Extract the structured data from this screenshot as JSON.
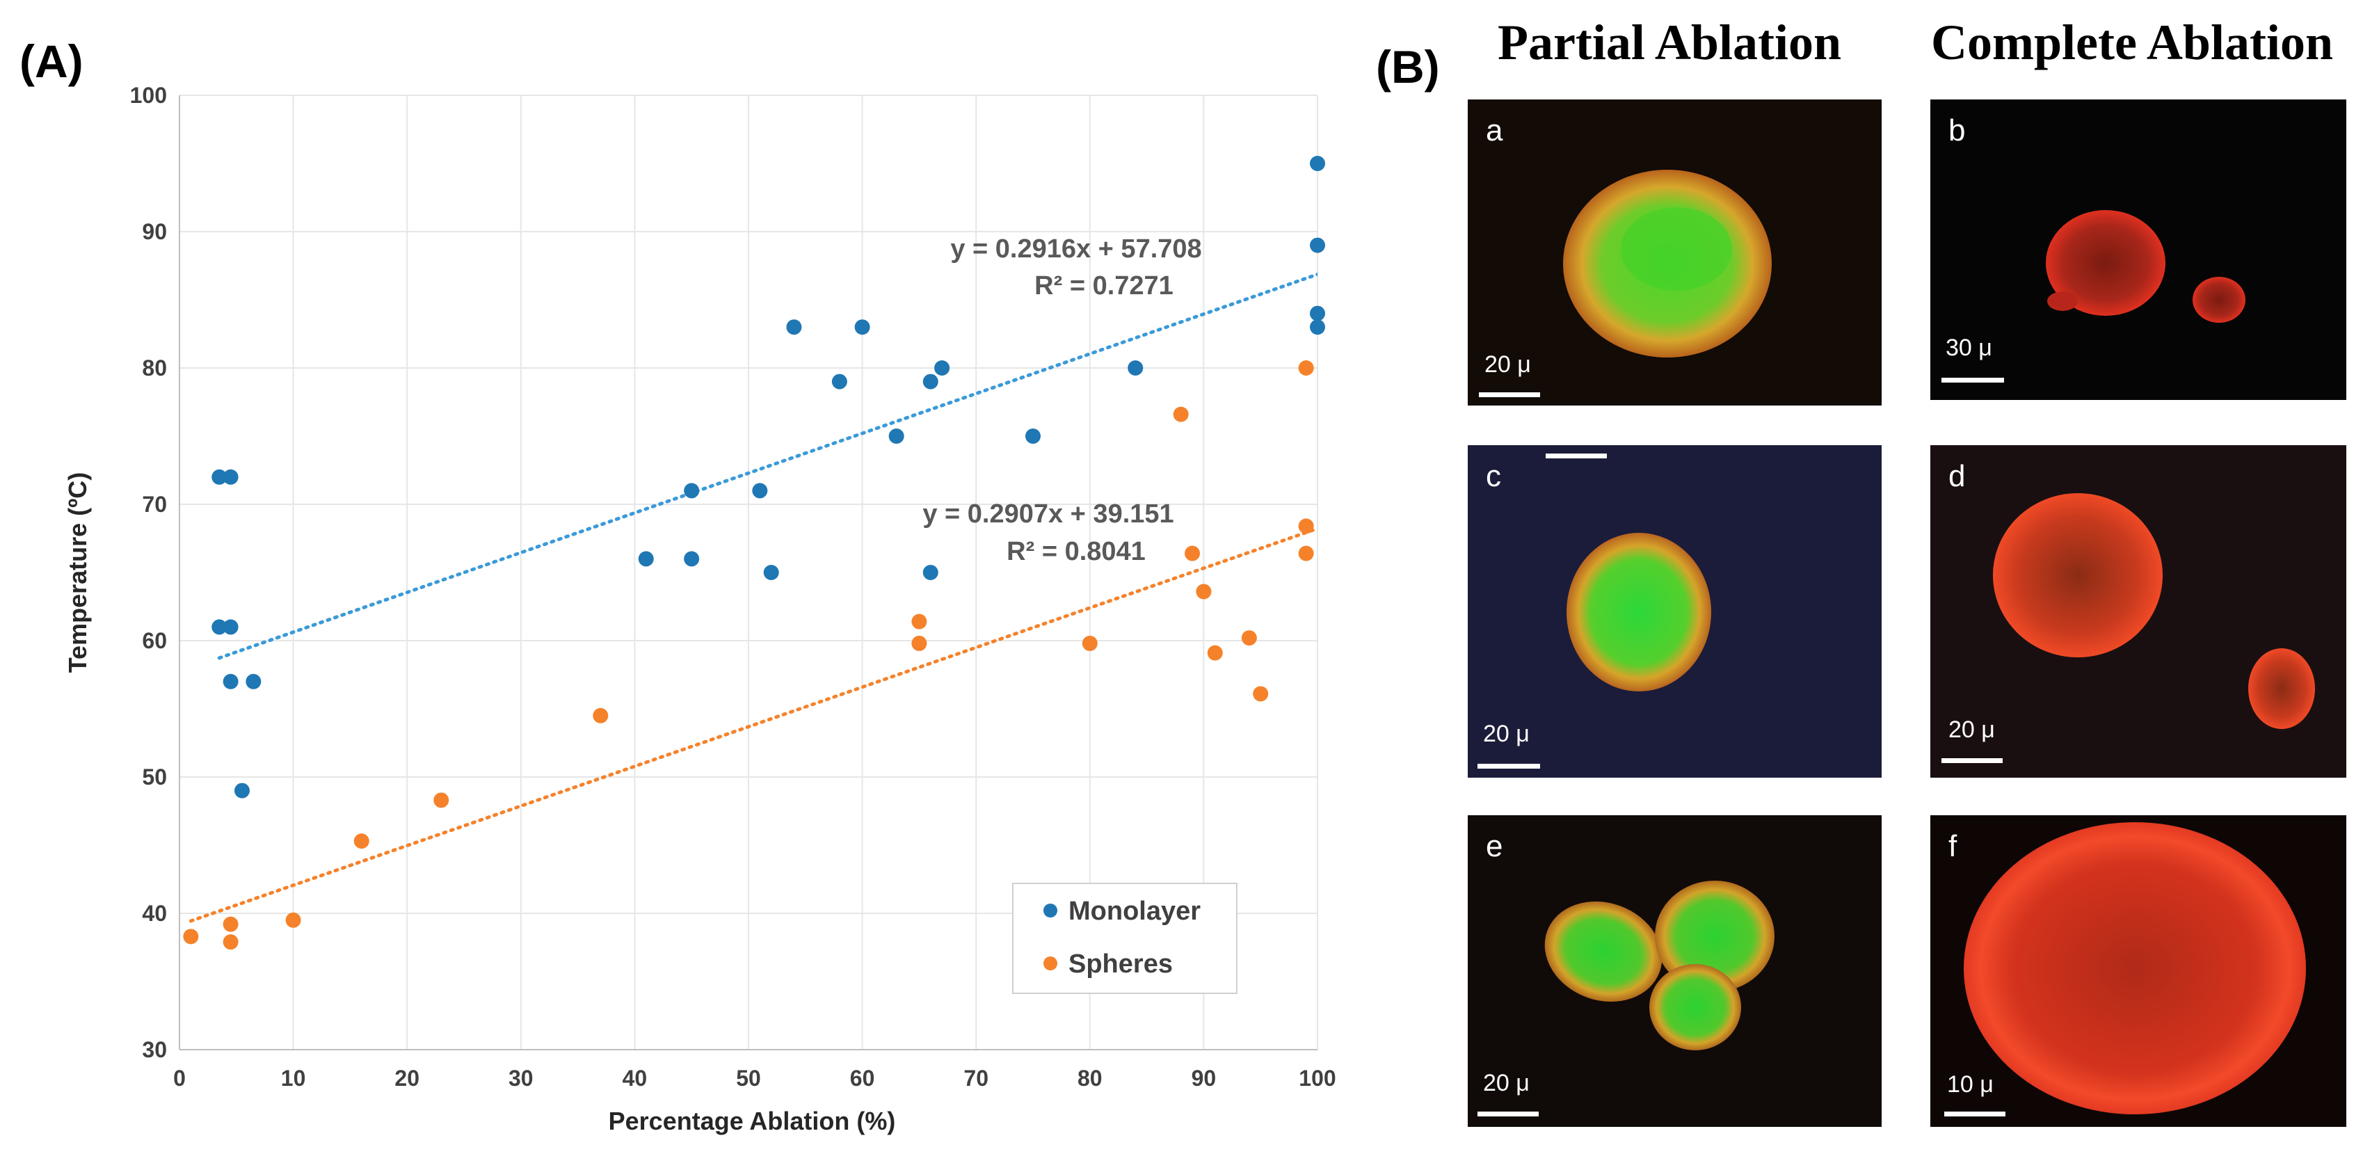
{
  "figure": {
    "panel_a_label": "(A)",
    "panel_b_label": "(B)"
  },
  "chart_data": {
    "type": "scatter",
    "xlabel": "Percentage Ablation (%)",
    "ylabel": "Temperature (ºC)",
    "xlim": [
      0,
      100
    ],
    "ylim": [
      30,
      100
    ],
    "xticks": [
      0,
      10,
      20,
      30,
      40,
      50,
      60,
      70,
      80,
      90,
      100
    ],
    "yticks": [
      30,
      40,
      50,
      60,
      70,
      80,
      90,
      100
    ],
    "grid": true,
    "legend_position": "bottom-right",
    "series": [
      {
        "name": "Monolayer",
        "color": "#1f77b4",
        "trend_color": "#3a9ad9",
        "trendline": {
          "slope": 0.2916,
          "intercept": 57.708,
          "x_range": [
            3.5,
            100
          ]
        },
        "equation": "y = 0.2916x + 57.708",
        "r2": "R² = 0.7271",
        "points": [
          [
            3.5,
            72
          ],
          [
            4.5,
            72
          ],
          [
            3.5,
            61
          ],
          [
            4.5,
            61
          ],
          [
            4.5,
            57
          ],
          [
            6.5,
            57
          ],
          [
            5.5,
            49
          ],
          [
            41,
            66
          ],
          [
            45,
            71
          ],
          [
            45,
            66
          ],
          [
            51,
            71
          ],
          [
            52,
            65
          ],
          [
            54,
            83
          ],
          [
            58,
            79
          ],
          [
            60,
            83
          ],
          [
            63,
            75
          ],
          [
            66,
            79
          ],
          [
            67,
            80
          ],
          [
            66,
            65
          ],
          [
            75,
            75
          ],
          [
            84,
            80
          ],
          [
            100,
            95
          ],
          [
            100,
            89
          ],
          [
            100,
            84
          ],
          [
            100,
            83
          ]
        ]
      },
      {
        "name": "Spheres",
        "color": "#f5822a",
        "trend_color": "#f5822a",
        "trendline": {
          "slope": 0.2907,
          "intercept": 39.151,
          "x_range": [
            1,
            100
          ]
        },
        "equation": "y = 0.2907x + 39.151",
        "r2": "R² = 0.8041",
        "points": [
          [
            1,
            38.3
          ],
          [
            4.5,
            39.2
          ],
          [
            4.5,
            37.9
          ],
          [
            10,
            39.5
          ],
          [
            16,
            45.3
          ],
          [
            23,
            48.3
          ],
          [
            37,
            54.5
          ],
          [
            65,
            61.4
          ],
          [
            65,
            59.8
          ],
          [
            80,
            59.8
          ],
          [
            88,
            76.6
          ],
          [
            89,
            66.4
          ],
          [
            90,
            63.6
          ],
          [
            91,
            59.1
          ],
          [
            94,
            60.2
          ],
          [
            95,
            56.1
          ],
          [
            99,
            80
          ],
          [
            99,
            68.4
          ],
          [
            99,
            66.4
          ]
        ]
      }
    ]
  },
  "micrographs": {
    "column_titles": [
      "Partial Ablation",
      "Complete Ablation"
    ],
    "panels": [
      {
        "letter": "a",
        "scale": "20 μ"
      },
      {
        "letter": "b",
        "scale": "30 μ"
      },
      {
        "letter": "c",
        "scale": "20 μ"
      },
      {
        "letter": "d",
        "scale": "20 μ"
      },
      {
        "letter": "e",
        "scale": "20 μ"
      },
      {
        "letter": "f",
        "scale": "10 μ"
      }
    ]
  }
}
